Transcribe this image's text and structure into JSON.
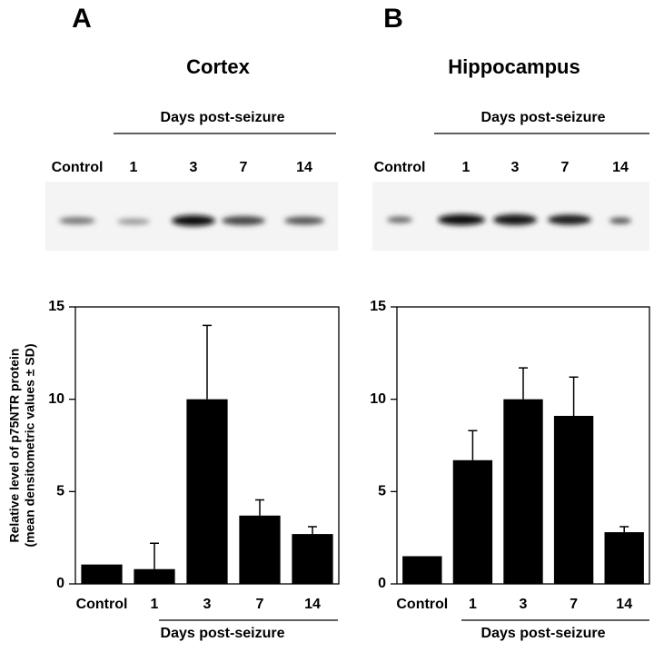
{
  "chart_data": [
    {
      "type": "bar",
      "panel_label": "A",
      "title": "Cortex",
      "x_label": "Days post-seizure",
      "y_label": [
        "Relative level of p75NTR protein",
        "(mean densitometric values ± SD)"
      ],
      "categories": [
        "Control",
        "1",
        "3",
        "7",
        "14"
      ],
      "values": [
        1.05,
        0.8,
        10,
        3.7,
        2.7
      ],
      "errors": [
        0,
        1.4,
        4,
        0.85,
        0.4
      ],
      "color": "#000000",
      "ylim": [
        0,
        15
      ],
      "yticks": [
        0,
        5,
        10,
        15
      ]
    },
    {
      "type": "bar",
      "panel_label": "B",
      "title": "Hippocampus",
      "x_label": "Days post-seizure",
      "categories": [
        "Control",
        "1",
        "3",
        "7",
        "14"
      ],
      "values": [
        1.5,
        6.7,
        10,
        9.1,
        2.8
      ],
      "errors": [
        0,
        1.6,
        1.7,
        2.1,
        0.3
      ],
      "color": "#000000",
      "ylim": [
        0,
        15
      ],
      "yticks": [
        0,
        5,
        10,
        15
      ]
    }
  ]
}
